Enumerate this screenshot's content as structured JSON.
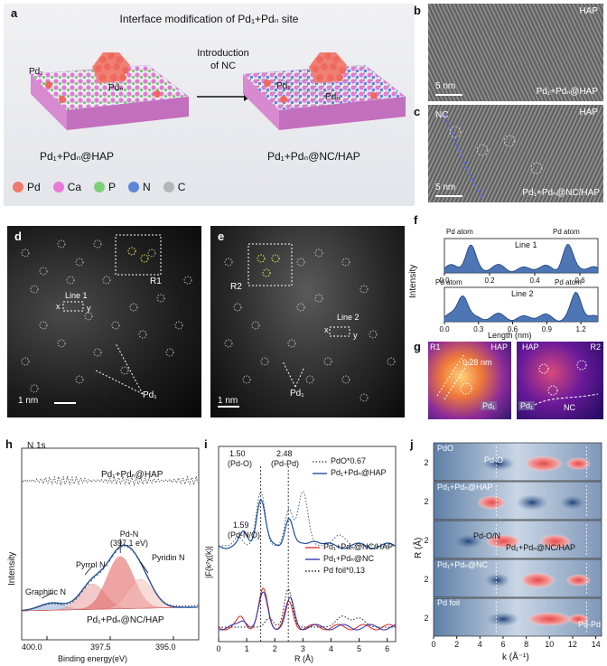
{
  "figure": {
    "panel_a": {
      "label": "a",
      "title": "Interface modification of Pd₁+Pdₙ site",
      "arrow_text_line1": "Introduction",
      "arrow_text_line2": "of NC",
      "left_pd1": "Pd₁",
      "left_pdn": "Pdₙ",
      "right_pd1": "Pd₁",
      "right_pdn": "Pdₙ",
      "left_caption": "Pd₁+Pdₙ@HAP",
      "right_caption": "Pd₁+Pdₙ@NC/HAP",
      "legend": [
        {
          "label": "Pd",
          "color": "#f07a6e"
        },
        {
          "label": "Ca",
          "color": "#e87ad8"
        },
        {
          "label": "P",
          "color": "#7fcf7a"
        },
        {
          "label": "N",
          "color": "#5b86d9"
        },
        {
          "label": "C",
          "color": "#b5b5b5"
        }
      ]
    },
    "panel_b": {
      "label": "b",
      "tag": "HAP",
      "scale": "5 nm",
      "caption": "Pd₁+Pdₙ@HAP"
    },
    "panel_c": {
      "label": "c",
      "tag_left": "NC",
      "tag_right": "HAP",
      "scale": "5 nm",
      "caption": "Pd₁+Pdₙ@NC/HAP"
    },
    "panel_d": {
      "label": "d",
      "region": "R1",
      "line": "Line 1",
      "x": "x",
      "y": "y",
      "pd1": "Pd₁",
      "scale": "1 nm"
    },
    "panel_e": {
      "label": "e",
      "region": "R2",
      "line": "Line 2",
      "x": "x",
      "y": "y",
      "pd1": "Pd₁",
      "scale": "1 nm"
    },
    "panel_f": {
      "label": "f",
      "ylabel": "Intensity",
      "xlabel": "Length (nm)",
      "line1": {
        "name": "Line 1",
        "peak_label_left": "Pd atom",
        "peak_label_right": "Pd atom",
        "ticks": [
          "0.0",
          "0.2",
          "0.4",
          "0.6"
        ],
        "xlim": [
          0,
          0.68
        ]
      },
      "line2": {
        "name": "Line 2",
        "peak_label_left": "Pd atom",
        "peak_label_right": "Pd atom",
        "ticks": [
          "0.0",
          "0.3",
          "0.6",
          "0.9",
          "1.2"
        ],
        "xlim": [
          0,
          1.35
        ]
      }
    },
    "panel_g": {
      "label": "g",
      "left_region": "R1",
      "left_tag": "HAP",
      "distance": "0.28 nm",
      "left_pd1": "Pd₁",
      "right_tag": "HAP",
      "right_region": "R2",
      "right_pd1": "Pd₁",
      "right_nc": "NC"
    },
    "panel_h": {
      "label": "h",
      "title": "N 1s",
      "top_sample": "Pd₁+Pdₙ@HAP",
      "bottom_sample": "Pd₁+Pdₙ@NC/HAP",
      "peak_main_line1": "Pd-N",
      "peak_main_line2": "(397.1 eV)",
      "pyrrol": "Pyrrol N",
      "pyridin": "Pyridin N",
      "graphitic": "Graphitic N",
      "ylabel": "Intensity",
      "xlabel": "Binding energy(eV)",
      "ticks": [
        "400.0",
        "397.5",
        "395.0"
      ]
    },
    "panel_i": {
      "label": "i",
      "ylabel": "|F(k²χ(k)|",
      "xlabel": "R (Å)",
      "ticks": [
        "0",
        "1",
        "2",
        "3",
        "4",
        "5",
        "6"
      ],
      "ann_150": "1.50",
      "ann_150_b": "(Pd-O)",
      "ann_248": "2.48",
      "ann_248_b": "(Pd-Pd)",
      "ann_159": "1.59",
      "ann_159_b": "(Pd-N/O)",
      "legend_top": [
        {
          "label": "PdO*0.67",
          "color": "#3f5d8a",
          "style": "dotted"
        },
        {
          "label": "Pd₁+Pdₙ@HAP",
          "color": "#1f4f9a",
          "style": "solid"
        }
      ],
      "legend_bottom": [
        {
          "label": "Pd₁+Pdₙ@NC/HAP",
          "color": "#e0352b",
          "style": "solid"
        },
        {
          "label": "Pd₁+Pdₙ@NC",
          "color": "#3b3bb0",
          "style": "solid"
        },
        {
          "label": "Pd foil*0.13",
          "color": "#222",
          "style": "dotted"
        }
      ]
    },
    "panel_j": {
      "label": "j",
      "ylabel": "R (Å)",
      "xlabel": "k (Å⁻¹)",
      "ticks": [
        "0",
        "2",
        "4",
        "6",
        "8",
        "10",
        "12",
        "14"
      ],
      "ytick": "2",
      "strips": [
        {
          "name": "PdO",
          "ann": "Pd-O"
        },
        {
          "name": "Pd₁+Pdₙ@HAP",
          "ann": ""
        },
        {
          "name": "",
          "ann": "Pd-O/N",
          "ann2": "Pd₁+Pdₙ@NC/HAP"
        },
        {
          "name": "Pd₁+Pdₙ@NC",
          "ann": ""
        },
        {
          "name": "Pd foil",
          "ann": "Pd-Pd"
        }
      ]
    }
  }
}
